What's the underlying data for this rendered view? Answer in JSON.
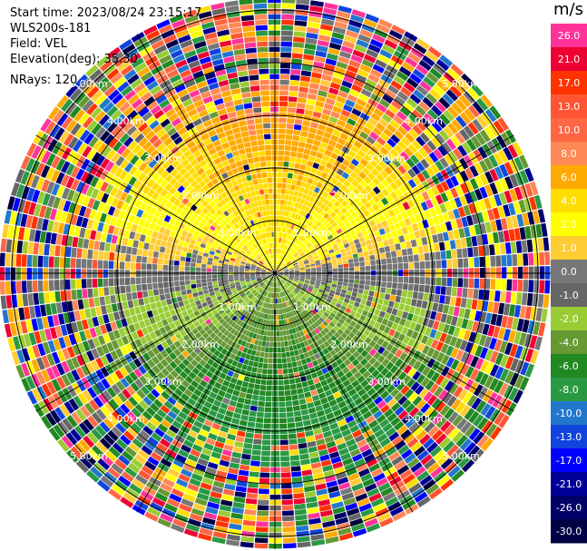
{
  "header": {
    "start_time": "Start time: 2023/08/24 23:15:17",
    "instrument": "WLS200s-181",
    "field": "Field: VEL",
    "elevation": "Elevation(deg): 35.30",
    "nrays": "NRays: 120"
  },
  "colorbar": {
    "unit": "m/s",
    "ticks": [
      "26.0",
      "21.0",
      "17.0",
      "13.0",
      "10.0",
      "8.0",
      "6.0",
      "4.0",
      "2.0",
      "1.0",
      "0.0",
      "-1.0",
      "-2.0",
      "-4.0",
      "-6.0",
      "-8.0",
      "-10.0",
      "-13.0",
      "-17.0",
      "-21.0",
      "-26.0",
      "-30.0"
    ],
    "colors": [
      "#ff3399",
      "#ee0033",
      "#ff3300",
      "#ff5533",
      "#ff6644",
      "#ff8855",
      "#ffaa00",
      "#ffdd00",
      "#ffff00",
      "#ffcc33",
      "#777777",
      "#666666",
      "#99cc33",
      "#669933",
      "#228822",
      "#2a9944",
      "#2277cc",
      "#1144dd",
      "#0000ff",
      "#000099",
      "#000066",
      "#000044"
    ]
  },
  "chart_data": {
    "type": "polar-ppi",
    "nrays": 120,
    "range_unit": "km",
    "range_rings_km": [
      1.0,
      2.0,
      3.0,
      4.0,
      5.0
    ],
    "ring_labels": [
      "1.00km",
      "2.00km",
      "3.00km",
      "4.00km",
      "5.00km"
    ],
    "velocity_range": [
      -30.0,
      26.0
    ],
    "pattern": "Positive (yellow/orange/red) velocities in the northern half near centre, negative (green) in the southern half, gray near zero along the east-west axis; noisy multicolour returns beyond ~3.5 km"
  }
}
